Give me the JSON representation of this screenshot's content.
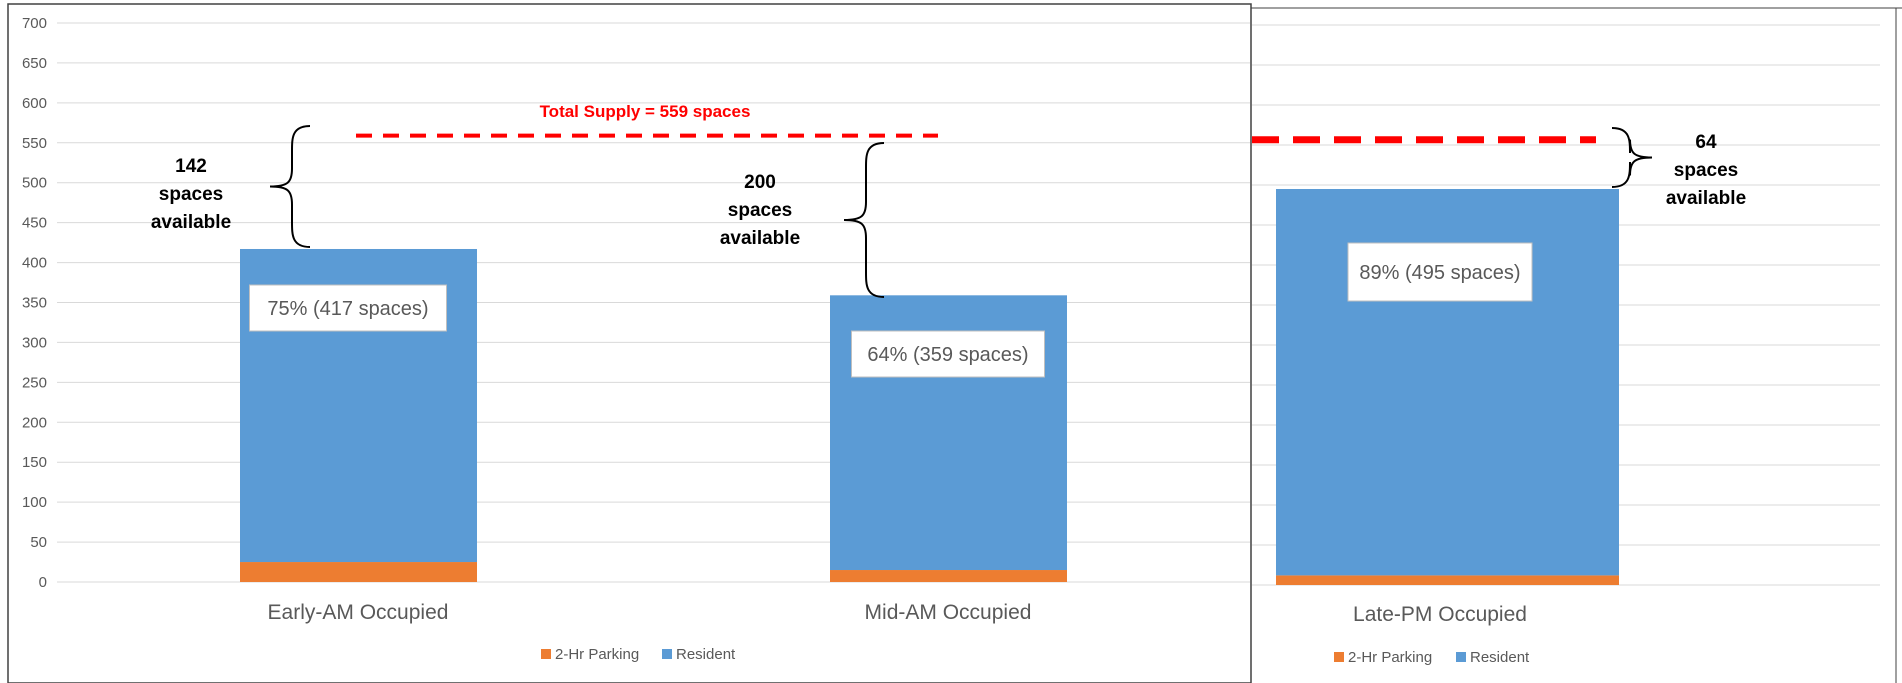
{
  "colors": {
    "resident": "#5b9bd5",
    "two_hr": "#ed7d31",
    "supply_line": "#ff0000",
    "grid": "#d9d9d9",
    "text": "#595959"
  },
  "chart_data": {
    "type": "bar",
    "stacked": true,
    "yticks": [
      "0",
      "50",
      "100",
      "150",
      "200",
      "250",
      "300",
      "350",
      "400",
      "450",
      "500",
      "550",
      "600",
      "650",
      "700"
    ],
    "ylim": [
      0,
      700
    ],
    "categories": [
      "Early-AM Occupied",
      "Mid-AM Occupied",
      "Late-PM Occupied"
    ],
    "series": [
      {
        "name": "2-Hr Parking",
        "values": [
          25,
          15,
          12
        ]
      },
      {
        "name": "Resident",
        "values": [
          392,
          344,
          483
        ]
      }
    ],
    "totals": [
      417,
      359,
      495
    ],
    "bar_labels": [
      "75% (417 spaces)",
      "64% (359 spaces)",
      "89% (495 spaces)"
    ],
    "supply": {
      "value": 559,
      "label": "Total Supply = 559 spaces"
    },
    "available": [
      {
        "number": "142",
        "line2": "spaces",
        "line3": "available"
      },
      {
        "number": "200",
        "line2": "spaces",
        "line3": "available"
      },
      {
        "number": "64",
        "line2": "spaces",
        "line3": "available"
      }
    ],
    "legend": [
      "2-Hr Parking",
      "Resident"
    ],
    "grid": true
  }
}
